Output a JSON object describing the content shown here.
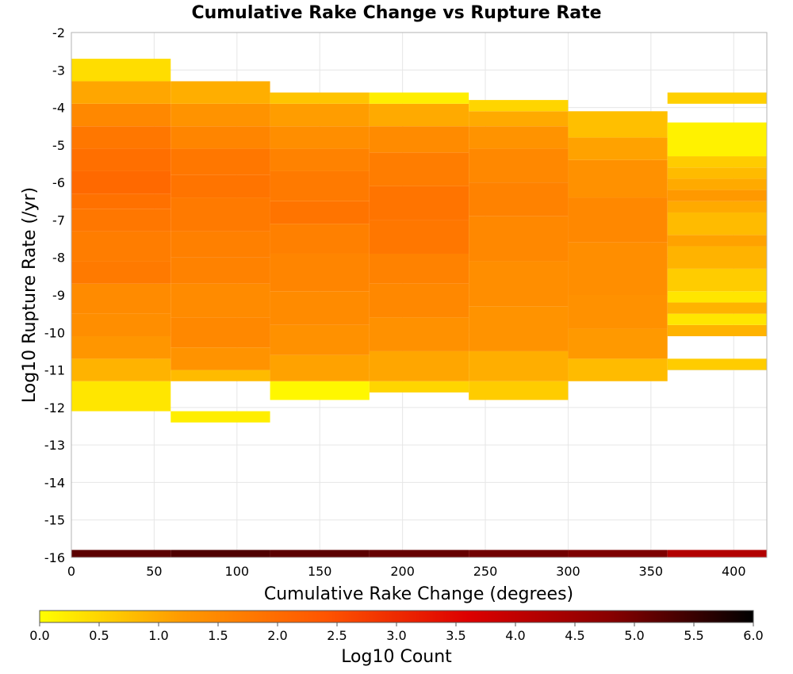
{
  "chart_data": {
    "type": "heatmap",
    "title": "Cumulative Rake Change vs Rupture Rate",
    "xlabel": "Cumulative Rake Change (degrees)",
    "ylabel": "Log10 Rupture Rate (/yr)",
    "xlim": [
      0,
      420
    ],
    "ylim": [
      -16,
      -2
    ],
    "x_ticks": [
      "0",
      "50",
      "100",
      "150",
      "200",
      "250",
      "300",
      "350",
      "400"
    ],
    "y_ticks": [
      "-2",
      "-3",
      "-4",
      "-5",
      "-6",
      "-7",
      "-8",
      "-9",
      "-10",
      "-11",
      "-12",
      "-13",
      "-14",
      "-15",
      "-16"
    ],
    "x_bin_width": 60,
    "y_bin_height": 0.3,
    "colorbar": {
      "label": "Log10 Count",
      "min": 0.0,
      "max": 6.0,
      "ticks": [
        "0.0",
        "0.5",
        "1.0",
        "1.5",
        "2.0",
        "2.5",
        "3.0",
        "3.5",
        "4.0",
        "4.5",
        "5.0",
        "5.5",
        "6.0"
      ],
      "colors": [
        "#ffff00",
        "#ff9900",
        "#ff5500",
        "#dd0000",
        "#880000",
        "#000000"
      ]
    },
    "columns": [
      {
        "x_start": 0,
        "bins": [
          {
            "y_low": -12.1,
            "y_high": -11.3,
            "value": 0.3
          },
          {
            "y_low": -11.3,
            "y_high": -10.7,
            "value": 0.9
          },
          {
            "y_low": -10.7,
            "y_high": -10.1,
            "value": 1.25
          },
          {
            "y_low": -10.1,
            "y_high": -9.5,
            "value": 1.4
          },
          {
            "y_low": -9.5,
            "y_high": -8.7,
            "value": 1.45
          },
          {
            "y_low": -8.7,
            "y_high": -8.1,
            "value": 1.75
          },
          {
            "y_low": -8.1,
            "y_high": -7.3,
            "value": 1.7
          },
          {
            "y_low": -7.3,
            "y_high": -6.7,
            "value": 1.8
          },
          {
            "y_low": -6.7,
            "y_high": -6.3,
            "value": 1.9
          },
          {
            "y_low": -6.3,
            "y_high": -5.7,
            "value": 2.05
          },
          {
            "y_low": -5.7,
            "y_high": -5.1,
            "value": 1.95
          },
          {
            "y_low": -5.1,
            "y_high": -4.5,
            "value": 1.8
          },
          {
            "y_low": -4.5,
            "y_high": -3.9,
            "value": 1.5
          },
          {
            "y_low": -3.9,
            "y_high": -3.3,
            "value": 1.05
          },
          {
            "y_low": -3.3,
            "y_high": -2.7,
            "value": 0.4
          }
        ]
      },
      {
        "x_start": 60,
        "bins": [
          {
            "y_low": -12.4,
            "y_high": -12.1,
            "value": 0.2
          },
          {
            "y_low": -11.3,
            "y_high": -11.0,
            "value": 0.8
          },
          {
            "y_low": -11.0,
            "y_high": -10.4,
            "value": 1.3
          },
          {
            "y_low": -10.4,
            "y_high": -9.6,
            "value": 1.5
          },
          {
            "y_low": -9.6,
            "y_high": -8.7,
            "value": 1.45
          },
          {
            "y_low": -8.7,
            "y_high": -8.0,
            "value": 1.6
          },
          {
            "y_low": -8.0,
            "y_high": -7.3,
            "value": 1.65
          },
          {
            "y_low": -7.3,
            "y_high": -6.4,
            "value": 1.75
          },
          {
            "y_low": -6.4,
            "y_high": -5.8,
            "value": 1.85
          },
          {
            "y_low": -5.8,
            "y_high": -5.1,
            "value": 1.8
          },
          {
            "y_low": -5.1,
            "y_high": -4.5,
            "value": 1.55
          },
          {
            "y_low": -4.5,
            "y_high": -3.9,
            "value": 1.3
          },
          {
            "y_low": -3.9,
            "y_high": -3.3,
            "value": 0.95
          }
        ]
      },
      {
        "x_start": 120,
        "bins": [
          {
            "y_low": -11.8,
            "y_high": -11.3,
            "value": 0.1
          },
          {
            "y_low": -11.3,
            "y_high": -10.6,
            "value": 1.1
          },
          {
            "y_low": -10.6,
            "y_high": -9.8,
            "value": 1.35
          },
          {
            "y_low": -9.8,
            "y_high": -8.9,
            "value": 1.45
          },
          {
            "y_low": -8.9,
            "y_high": -7.9,
            "value": 1.55
          },
          {
            "y_low": -7.9,
            "y_high": -7.1,
            "value": 1.65
          },
          {
            "y_low": -7.1,
            "y_high": -6.5,
            "value": 1.85
          },
          {
            "y_low": -6.5,
            "y_high": -5.7,
            "value": 1.75
          },
          {
            "y_low": -5.7,
            "y_high": -5.1,
            "value": 1.6
          },
          {
            "y_low": -5.1,
            "y_high": -4.5,
            "value": 1.4
          },
          {
            "y_low": -4.5,
            "y_high": -3.9,
            "value": 1.15
          },
          {
            "y_low": -3.9,
            "y_high": -3.6,
            "value": 0.7
          }
        ]
      },
      {
        "x_start": 180,
        "bins": [
          {
            "y_low": -11.6,
            "y_high": -11.3,
            "value": 0.5
          },
          {
            "y_low": -11.3,
            "y_high": -10.5,
            "value": 1.05
          },
          {
            "y_low": -10.5,
            "y_high": -9.6,
            "value": 1.35
          },
          {
            "y_low": -9.6,
            "y_high": -8.7,
            "value": 1.5
          },
          {
            "y_low": -8.7,
            "y_high": -7.9,
            "value": 1.6
          },
          {
            "y_low": -7.9,
            "y_high": -7.0,
            "value": 1.8
          },
          {
            "y_low": -7.0,
            "y_high": -6.1,
            "value": 1.85
          },
          {
            "y_low": -6.1,
            "y_high": -5.2,
            "value": 1.7
          },
          {
            "y_low": -5.2,
            "y_high": -4.5,
            "value": 1.45
          },
          {
            "y_low": -4.5,
            "y_high": -3.9,
            "value": 1.0
          },
          {
            "y_low": -3.9,
            "y_high": -3.6,
            "value": 0.2
          }
        ]
      },
      {
        "x_start": 240,
        "bins": [
          {
            "y_low": -11.8,
            "y_high": -11.3,
            "value": 0.6
          },
          {
            "y_low": -11.3,
            "y_high": -10.5,
            "value": 0.95
          },
          {
            "y_low": -10.5,
            "y_high": -9.3,
            "value": 1.3
          },
          {
            "y_low": -9.3,
            "y_high": -8.1,
            "value": 1.4
          },
          {
            "y_low": -8.1,
            "y_high": -6.9,
            "value": 1.5
          },
          {
            "y_low": -6.9,
            "y_high": -6.0,
            "value": 1.6
          },
          {
            "y_low": -6.0,
            "y_high": -5.1,
            "value": 1.5
          },
          {
            "y_low": -5.1,
            "y_high": -4.5,
            "value": 1.3
          },
          {
            "y_low": -4.5,
            "y_high": -4.1,
            "value": 1.0
          },
          {
            "y_low": -4.1,
            "y_high": -3.8,
            "value": 0.5
          }
        ]
      },
      {
        "x_start": 300,
        "bins": [
          {
            "y_low": -11.3,
            "y_high": -10.7,
            "value": 0.8
          },
          {
            "y_low": -10.7,
            "y_high": -9.9,
            "value": 1.2
          },
          {
            "y_low": -9.9,
            "y_high": -9.0,
            "value": 1.35
          },
          {
            "y_low": -9.0,
            "y_high": -7.6,
            "value": 1.4
          },
          {
            "y_low": -7.6,
            "y_high": -6.4,
            "value": 1.5
          },
          {
            "y_low": -6.4,
            "y_high": -5.4,
            "value": 1.35
          },
          {
            "y_low": -5.4,
            "y_high": -4.8,
            "value": 1.1
          },
          {
            "y_low": -4.8,
            "y_high": -4.1,
            "value": 0.75
          }
        ]
      },
      {
        "x_start": 360,
        "bins": [
          {
            "y_low": -11.0,
            "y_high": -10.7,
            "value": 0.6
          },
          {
            "y_low": -10.1,
            "y_high": -9.8,
            "value": 0.9
          },
          {
            "y_low": -9.8,
            "y_high": -9.5,
            "value": 0.3
          },
          {
            "y_low": -9.5,
            "y_high": -9.2,
            "value": 0.9
          },
          {
            "y_low": -9.2,
            "y_high": -8.9,
            "value": 0.3
          },
          {
            "y_low": -8.9,
            "y_high": -8.3,
            "value": 0.6
          },
          {
            "y_low": -8.3,
            "y_high": -7.7,
            "value": 0.9
          },
          {
            "y_low": -7.7,
            "y_high": -7.4,
            "value": 1.1
          },
          {
            "y_low": -7.4,
            "y_high": -6.8,
            "value": 0.8
          },
          {
            "y_low": -6.8,
            "y_high": -6.5,
            "value": 1.0
          },
          {
            "y_low": -6.5,
            "y_high": -6.2,
            "value": 1.2
          },
          {
            "y_low": -6.2,
            "y_high": -5.9,
            "value": 1.0
          },
          {
            "y_low": -5.9,
            "y_high": -5.6,
            "value": 0.8
          },
          {
            "y_low": -5.6,
            "y_high": -5.3,
            "value": 0.6
          },
          {
            "y_low": -5.3,
            "y_high": -4.4,
            "value": 0.15
          },
          {
            "y_low": -3.9,
            "y_high": -3.6,
            "value": 0.55
          }
        ]
      }
    ],
    "zero_rate_row": {
      "y_low": -16.0,
      "y_high": -15.8,
      "values": [
        5.2,
        5.3,
        5.2,
        5.1,
        5.0,
        4.9,
        4.2
      ]
    }
  }
}
